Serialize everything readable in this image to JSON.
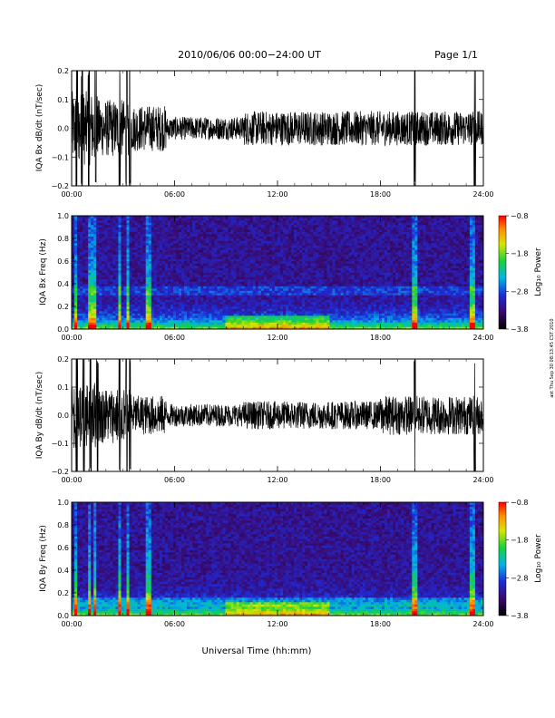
{
  "header": {
    "title": "2010/06/06  00:00−24:00 UT",
    "page": "Page 1/1"
  },
  "footer": {
    "xlabel": "Universal Time (hh:mm)",
    "stamp": "ast Thu Sep 30 08:13:45 CST 2010"
  },
  "chart_data": [
    {
      "type": "line",
      "ylabel": "IQA Bx dB/dt (nT/sec)",
      "xlabel": "",
      "x_ticks": [
        "00:00",
        "06:00",
        "12:00",
        "18:00",
        "24:00"
      ],
      "y_ticks": [
        "0.2",
        "0.1",
        "0.0",
        "−0.1",
        "−0.2"
      ],
      "ylim": [
        -0.2,
        0.2
      ],
      "xlim_hours": [
        0,
        24
      ],
      "activity": [
        {
          "hours": [
            0.0,
            1.5
          ],
          "amplitude": 0.13
        },
        {
          "hours": [
            1.5,
            3.5
          ],
          "amplitude": 0.1
        },
        {
          "hours": [
            3.5,
            5.5
          ],
          "amplitude": 0.08
        },
        {
          "hours": [
            5.5,
            10.0
          ],
          "amplitude": 0.04
        },
        {
          "hours": [
            10.0,
            18.0
          ],
          "amplitude": 0.06
        },
        {
          "hours": [
            18.0,
            24.0
          ],
          "amplitude": 0.06
        }
      ],
      "spikes_hours": [
        0.3,
        0.6,
        1.0,
        1.4,
        2.8,
        3.2,
        3.4,
        20.0,
        23.5
      ]
    },
    {
      "type": "heatmap",
      "ylabel": "IQA Bx Freq (Hz)",
      "x_ticks": [
        "00:00",
        "06:00",
        "12:00",
        "18:00",
        "24:00"
      ],
      "y_ticks": [
        "1.0",
        "0.8",
        "0.6",
        "0.4",
        "0.2",
        "0.0"
      ],
      "ylim": [
        0.0,
        1.0
      ],
      "colorbar": {
        "label": "Log₁₀ Power",
        "ticks": [
          "−0.8",
          "−1.8",
          "−2.8",
          "−3.8"
        ],
        "range": [
          -3.8,
          -0.8
        ]
      },
      "bright_columns_hours": [
        0.2,
        1.0,
        1.3,
        2.8,
        3.3,
        4.5,
        20.0,
        23.4
      ],
      "horizontal_band_hz": 0.33
    },
    {
      "type": "line",
      "ylabel": "IQA By dB/dt (nT/sec)",
      "xlabel": "",
      "x_ticks": [
        "00:00",
        "06:00",
        "12:00",
        "18:00",
        "24:00"
      ],
      "y_ticks": [
        "0.2",
        "0.1",
        "0.0",
        "−0.1",
        "−0.2"
      ],
      "ylim": [
        -0.2,
        0.2
      ],
      "xlim_hours": [
        0,
        24
      ],
      "activity": [
        {
          "hours": [
            0.0,
            1.5
          ],
          "amplitude": 0.12
        },
        {
          "hours": [
            1.5,
            3.5
          ],
          "amplitude": 0.1
        },
        {
          "hours": [
            3.5,
            5.5
          ],
          "amplitude": 0.07
        },
        {
          "hours": [
            5.5,
            10.0
          ],
          "amplitude": 0.04
        },
        {
          "hours": [
            10.0,
            18.0
          ],
          "amplitude": 0.05
        },
        {
          "hours": [
            18.0,
            24.0
          ],
          "amplitude": 0.07
        }
      ],
      "spikes_hours": [
        0.3,
        0.7,
        1.1,
        1.5,
        2.8,
        3.2,
        3.4,
        20.0,
        23.5
      ]
    },
    {
      "type": "heatmap",
      "ylabel": "IQA By Freq (Hz)",
      "x_ticks": [
        "00:00",
        "06:00",
        "12:00",
        "18:00",
        "24:00"
      ],
      "y_ticks": [
        "1.0",
        "0.8",
        "0.6",
        "0.4",
        "0.2",
        "0.0"
      ],
      "ylim": [
        0.0,
        1.0
      ],
      "colorbar": {
        "label": "Log₁₀ Power",
        "ticks": [
          "−0.8",
          "−1.8",
          "−2.8",
          "−3.8"
        ],
        "range": [
          -3.8,
          -0.8
        ]
      },
      "bright_columns_hours": [
        0.2,
        1.0,
        1.4,
        2.8,
        3.3,
        4.5,
        20.0,
        23.4
      ],
      "horizontal_band_hz": 0.12
    }
  ]
}
